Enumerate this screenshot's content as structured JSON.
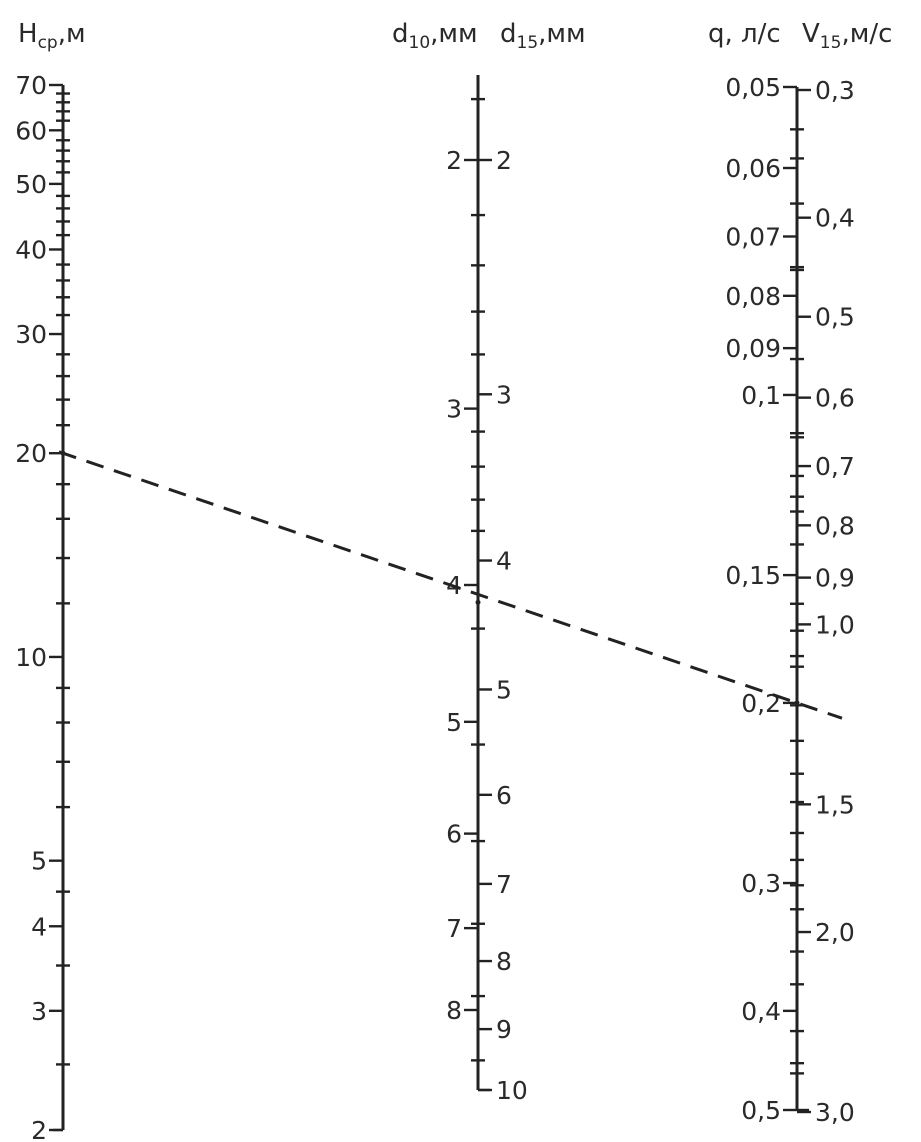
{
  "chart_data": {
    "type": "nomogram",
    "axes": [
      {
        "id": "H",
        "title": "H_ср,м",
        "title_main": "H",
        "title_sub": "ср",
        "title_rest": ",м",
        "scale": "log",
        "range": [
          2,
          70
        ],
        "labels_side": "left",
        "tick_labels": [
          "70",
          "60",
          "50",
          "40",
          "30",
          "20",
          "10",
          "5",
          "4",
          "3",
          "2"
        ],
        "label_values": [
          70,
          60,
          50,
          40,
          30,
          20,
          10,
          5,
          4,
          3,
          2
        ],
        "minor_ticks": [
          2.5,
          3.5,
          4.5,
          6,
          7,
          8,
          9,
          12,
          14,
          16,
          18,
          22,
          24,
          26,
          28,
          32,
          34,
          36,
          38,
          42,
          44,
          46,
          48,
          52,
          54,
          56,
          58,
          62,
          64,
          66,
          68
        ]
      },
      {
        "id": "d10",
        "title": "d₁₀,мм",
        "title_main": "d",
        "title_sub": "10",
        "title_rest": ",мм",
        "scale": "log",
        "range": [
          1.7,
          9
        ],
        "labels_side": "left",
        "tick_labels": [
          "2",
          "3",
          "4",
          "5",
          "6",
          "7",
          "8"
        ],
        "label_values": [
          2,
          3,
          4,
          5,
          6,
          7,
          8
        ]
      },
      {
        "id": "d15",
        "title": "d₁₅,мм",
        "title_main": "d",
        "title_sub": "15",
        "title_rest": ",мм",
        "scale": "log",
        "range": [
          1.7,
          10
        ],
        "labels_side": "right",
        "tick_labels": [
          "2",
          "3",
          "4",
          "5",
          "6",
          "7",
          "8",
          "9",
          "10"
        ],
        "label_values": [
          2,
          3,
          4,
          5,
          6,
          7,
          8,
          9,
          10
        ],
        "minor_ticks": [
          1.8,
          2.2,
          2.4,
          2.6,
          2.8,
          3.2,
          3.4,
          3.6,
          3.8,
          4.5,
          5.5,
          6.5,
          7.5,
          8.5,
          9.5
        ]
      },
      {
        "id": "q",
        "title": "q, л/с",
        "title_main": "q,",
        "title_rest": " л/с",
        "scale": "log",
        "range": [
          0.05,
          0.5
        ],
        "labels_side": "left",
        "tick_labels": [
          "0,05",
          "0,06",
          "0,07",
          "0,08",
          "0,09",
          "0,1",
          "0,15",
          "0,2",
          "0,3",
          "0,4",
          "0,5"
        ],
        "label_values": [
          0.05,
          0.06,
          0.07,
          0.08,
          0.09,
          0.1,
          0.15,
          0.2,
          0.3,
          0.4,
          0.5
        ],
        "minor_ticks": [
          0.055,
          0.065,
          0.075,
          0.11,
          0.12,
          0.13,
          0.14,
          0.16,
          0.17,
          0.18,
          0.25,
          0.35,
          0.45
        ]
      },
      {
        "id": "V15",
        "title": "V₁₅,м/с",
        "title_main": "V",
        "title_sub": "15",
        "title_rest": ",м/с",
        "scale": "log",
        "range": [
          0.3,
          3.0
        ],
        "labels_side": "right",
        "tick_labels": [
          "0,3",
          "0,4",
          "0,5",
          "0,6",
          "0,7",
          "0,8",
          "0,9",
          "1,0",
          "1,5",
          "2,0",
          "3,0"
        ],
        "label_values": [
          0.3,
          0.4,
          0.5,
          0.6,
          0.7,
          0.8,
          0.9,
          1.0,
          1.5,
          2.0,
          3.0
        ],
        "minor_ticks": [
          0.35,
          0.45,
          0.55,
          0.65,
          0.75,
          1.1,
          1.2,
          1.3,
          1.4,
          1.6,
          1.7,
          1.8,
          1.9,
          2.25,
          2.5,
          2.75
        ]
      }
    ],
    "key_line": {
      "style": "dashed",
      "points": [
        {
          "axis": "H",
          "value": 20
        },
        {
          "axis": "d15",
          "value": 4.3
        },
        {
          "axis": "q",
          "value": 0.2
        }
      ]
    },
    "grid": false,
    "legend": "none"
  }
}
